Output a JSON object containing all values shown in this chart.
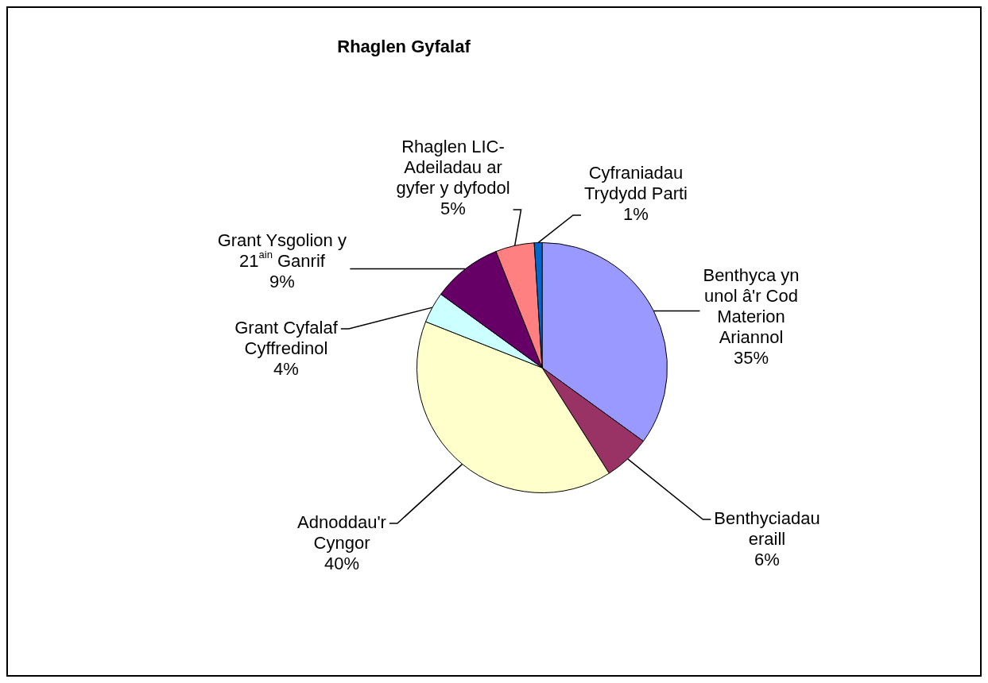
{
  "chart_data": {
    "type": "pie",
    "title": "Rhaglen Gyfalaf",
    "categories": [
      "Benthyca yn unol â'r Cod Materion Ariannol",
      "Benthyciadau eraill",
      "Adnoddau'r Cyngor",
      "Grant Cyfalaf Cyffredinol",
      "Grant Ysgolion y 21$^{ain}$ Ganrif",
      "Rhaglen LIC-Adeiladau ar gyfer y dyfodol",
      "Cyfraniadau Trydydd Parti"
    ],
    "values": [
      35,
      6,
      40,
      4,
      9,
      5,
      1
    ],
    "value_labels": [
      "35%",
      "6%",
      "40%",
      "4%",
      "9%",
      "5%",
      "1%"
    ],
    "colors": [
      "#9999ff",
      "#993366",
      "#ffffcc",
      "#ccffff",
      "#660066",
      "#ff8080",
      "#0066cc"
    ],
    "legend": false
  }
}
